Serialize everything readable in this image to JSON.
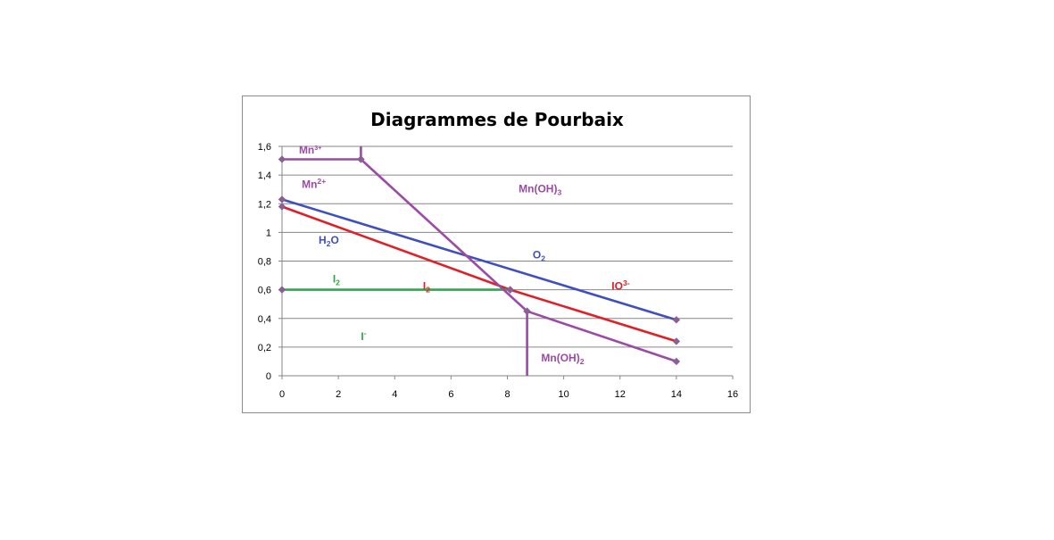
{
  "chart_data": {
    "type": "line",
    "title": "Diagrammes de Pourbaix",
    "xlabel": "",
    "ylabel": "",
    "xlim": [
      0,
      16
    ],
    "ylim": [
      0,
      1.6
    ],
    "x_ticks": [
      0,
      2,
      4,
      6,
      8,
      10,
      12,
      14,
      16
    ],
    "x_tick_labels": [
      "0",
      "2",
      "4",
      "6",
      "8",
      "10",
      "12",
      "14",
      "16"
    ],
    "y_ticks": [
      0,
      0.2,
      0.4,
      0.6,
      0.8,
      1.0,
      1.2,
      1.4,
      1.6
    ],
    "y_tick_labels": [
      "0",
      "0,2",
      "0,4",
      "0,6",
      "0,8",
      "1",
      "1,2",
      "1,4",
      "1,6"
    ],
    "grid": "horizontal",
    "legend": "none",
    "colors": {
      "manganese": "#9b4aa6",
      "water": "#3f4fbf",
      "iodate": "#e01f26",
      "iodine": "#2ea84a",
      "marker": "#8a5f93",
      "grid": "#868686"
    },
    "series": [
      {
        "color_key": "water",
        "marker": true,
        "points": [
          [
            0,
            1.23
          ],
          [
            14,
            0.39
          ]
        ]
      },
      {
        "color_key": "iodate",
        "marker": true,
        "points": [
          [
            0,
            1.18
          ],
          [
            8.1,
            0.6
          ],
          [
            14,
            0.24
          ]
        ]
      },
      {
        "color_key": "iodine",
        "marker": true,
        "points": [
          [
            0,
            0.6
          ],
          [
            8.1,
            0.6
          ]
        ]
      },
      {
        "color_key": "manganese",
        "marker": true,
        "points": [
          [
            0,
            1.51
          ],
          [
            2.8,
            1.51
          ]
        ]
      },
      {
        "color_key": "manganese",
        "marker": true,
        "points": [
          [
            2.8,
            1.51
          ],
          [
            8.7,
            0.45
          ]
        ]
      },
      {
        "color_key": "manganese",
        "marker": true,
        "points": [
          [
            8.7,
            0.45
          ],
          [
            14,
            0.1
          ]
        ]
      },
      {
        "color_key": "manganese",
        "marker": false,
        "points": [
          [
            2.8,
            1.51
          ],
          [
            2.8,
            1.6
          ]
        ]
      },
      {
        "color_key": "manganese",
        "marker": false,
        "points": [
          [
            8.7,
            0.45
          ],
          [
            8.7,
            0.0
          ]
        ]
      }
    ],
    "annotations": [
      {
        "base": "Mn",
        "sup": "3+",
        "sub": "",
        "x": 0.6,
        "y": 1.55,
        "color_key": "manganese",
        "size": "small"
      },
      {
        "base": "Mn",
        "sup": "2+",
        "sub": "",
        "x": 0.7,
        "y": 1.31,
        "color_key": "manganese",
        "size": "normal"
      },
      {
        "base": "Mn(OH)",
        "sup": "",
        "sub": "3",
        "x": 8.4,
        "y": 1.28,
        "color_key": "manganese",
        "size": "normal"
      },
      {
        "base": "H",
        "sup": "",
        "sub": "2",
        "tail": "O",
        "x": 1.3,
        "y": 0.92,
        "color_key": "water",
        "size": "normal"
      },
      {
        "base": "O",
        "sup": "",
        "sub": "2",
        "x": 8.9,
        "y": 0.82,
        "color_key": "water",
        "size": "normal"
      },
      {
        "base": "IO",
        "sup": "3-",
        "sub": "",
        "x": 11.7,
        "y": 0.6,
        "color_key": "iodate",
        "size": "normal"
      },
      {
        "base": "I",
        "sup": "",
        "sub": "2",
        "x": 5.0,
        "y": 0.6,
        "color_key": "iodate",
        "size": "normal"
      },
      {
        "base": "I",
        "sup": "",
        "sub": "2",
        "x": 1.8,
        "y": 0.65,
        "color_key": "iodine",
        "size": "normal"
      },
      {
        "base": "I",
        "sup": "-",
        "sub": "",
        "x": 2.8,
        "y": 0.25,
        "color_key": "iodine",
        "size": "normal"
      },
      {
        "base": "Mn(OH)",
        "sup": "",
        "sub": "2",
        "x": 9.2,
        "y": 0.1,
        "color_key": "manganese",
        "size": "normal"
      }
    ]
  }
}
